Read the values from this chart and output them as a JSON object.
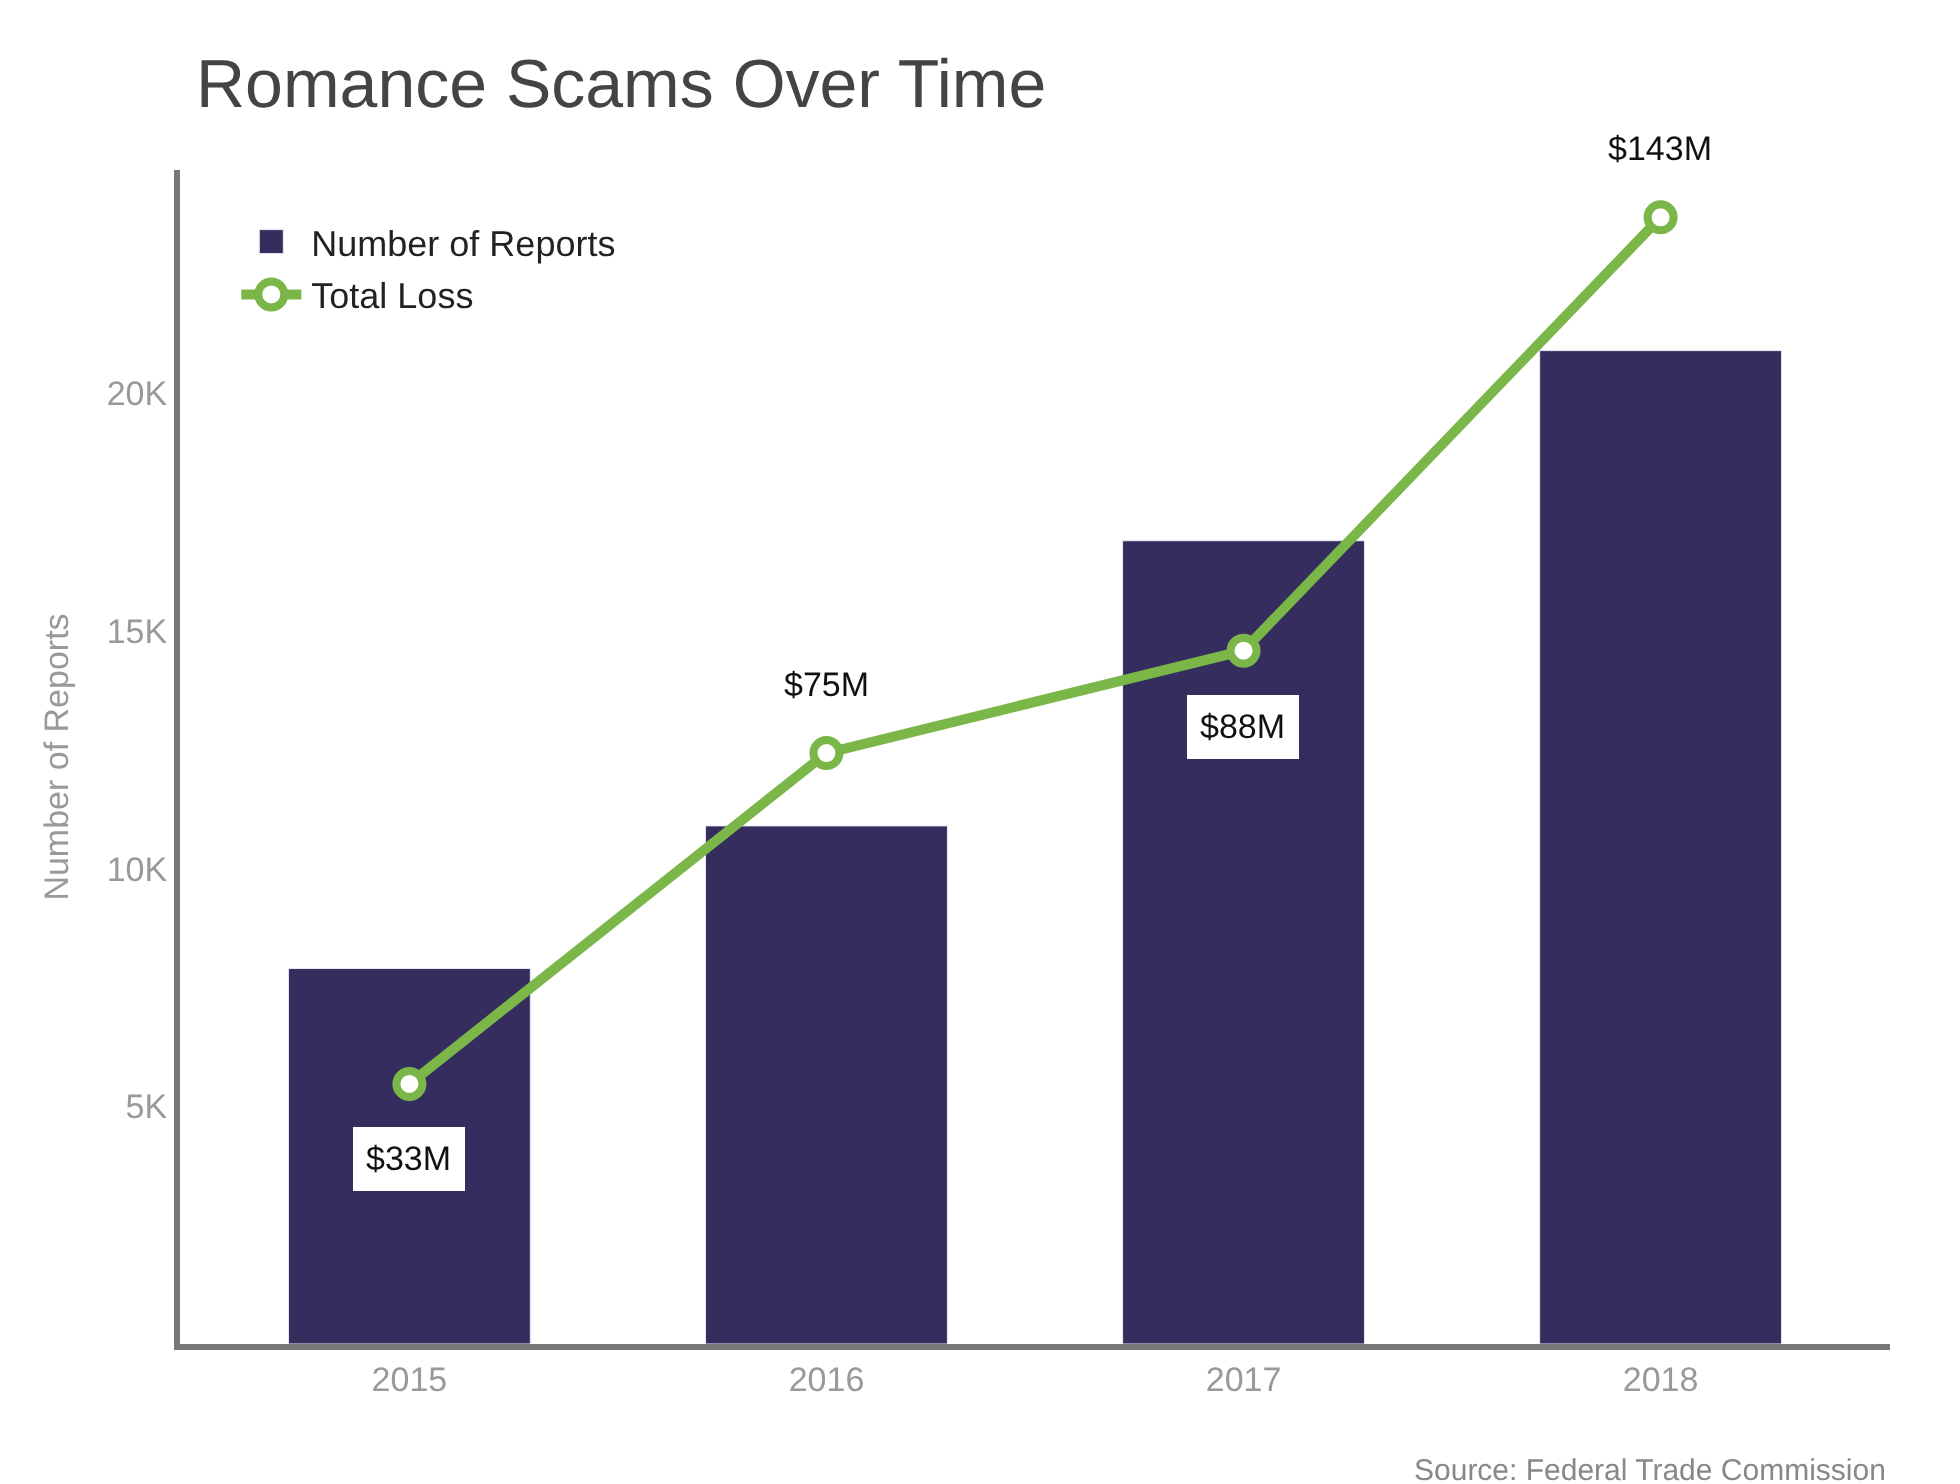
{
  "chart_data": {
    "type": "bar",
    "title": "Romance Scams Over Time",
    "ylabel": "Number of Reports",
    "categories": [
      "2015",
      "2016",
      "2017",
      "2018"
    ],
    "series": [
      {
        "name": "Number of Reports",
        "color": "#342d5e",
        "values": [
          7900,
          10900,
          16900,
          20900
        ]
      },
      {
        "name": "Total Loss",
        "type": "line",
        "axis": "y2",
        "color": "#7ab648",
        "values": [
          33,
          75,
          88,
          143
        ],
        "value_labels": [
          "$33M",
          "$75M",
          "$88M",
          "$143M"
        ]
      }
    ],
    "ylim": [
      0,
      24700
    ],
    "yticks": [
      {
        "value": 5000,
        "label": "5K"
      },
      {
        "value": 10000,
        "label": "10K"
      },
      {
        "value": 15000,
        "label": "15K"
      },
      {
        "value": 20000,
        "label": "20K"
      }
    ],
    "y2lim": [
      0,
      149
    ],
    "marker": "circle",
    "legend": "top left",
    "annotations": [
      "Source: Federal Trade Commission"
    ]
  }
}
